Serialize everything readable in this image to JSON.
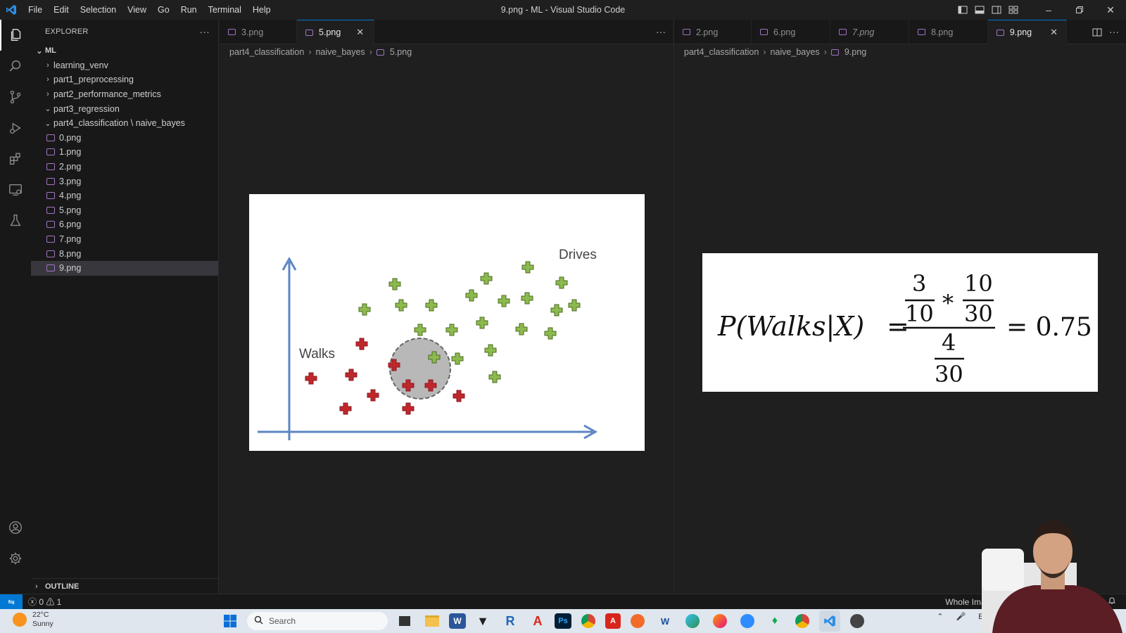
{
  "titlebar": {
    "menu": [
      "File",
      "Edit",
      "Selection",
      "View",
      "Go",
      "Run",
      "Terminal",
      "Help"
    ],
    "window_title": "9.png - ML - Visual Studio Code"
  },
  "activity": [
    "explorer-icon",
    "search-icon",
    "source-control-icon",
    "run-debug-icon",
    "extensions-icon",
    "remote-explorer-icon",
    "testing-icon",
    "accounts-icon",
    "manage-gear-icon"
  ],
  "sidebar": {
    "header": "EXPLORER",
    "root": "ML",
    "folders": [
      "learning_venv",
      "part1_preprocessing",
      "part2_performance_metrics",
      "part3_regression",
      "part4_classification \\ naive_bayes"
    ],
    "files": [
      "0.png",
      "1.png",
      "2.png",
      "3.png",
      "4.png",
      "5.png",
      "6.png",
      "7.png",
      "8.png",
      "9.png"
    ],
    "selected_file": "9.png",
    "outline": "OUTLINE"
  },
  "left_group": {
    "tabs": [
      {
        "label": "3.png",
        "active": false
      },
      {
        "label": "5.png",
        "active": true
      }
    ],
    "breadcrumb": [
      "part4_classification",
      "naive_bayes",
      "5.png"
    ],
    "image": {
      "label_walks": "Walks",
      "label_drives": "Drives",
      "colors": {
        "walks": "#c0272d",
        "drives": "#8cba4d",
        "axis": "#5b86c4",
        "circle": "#b8b8b8"
      }
    }
  },
  "right_group": {
    "tabs": [
      {
        "label": "2.png",
        "active": false
      },
      {
        "label": "6.png",
        "active": false
      },
      {
        "label": "7.png",
        "active": false
      },
      {
        "label": "8.png",
        "active": false
      },
      {
        "label": "9.png",
        "active": true
      }
    ],
    "breadcrumb": [
      "part4_classification",
      "naive_bayes",
      "9.png"
    ],
    "formula": {
      "lhs": "P(Walks|X)",
      "eq": "=",
      "num_a_top": "3",
      "num_a_bot": "10",
      "times": "*",
      "num_b_top": "10",
      "num_b_bot": "30",
      "den_top": "4",
      "den_bot": "30",
      "result": "= 0.75"
    }
  },
  "statusbar": {
    "problems": "ⓧ 0 ⚠ 1",
    "right_text": "Whole Image"
  },
  "taskbar": {
    "temperature": "22°C",
    "condition": "Sunny",
    "search_placeholder": "Search",
    "lang": "ENG"
  }
}
